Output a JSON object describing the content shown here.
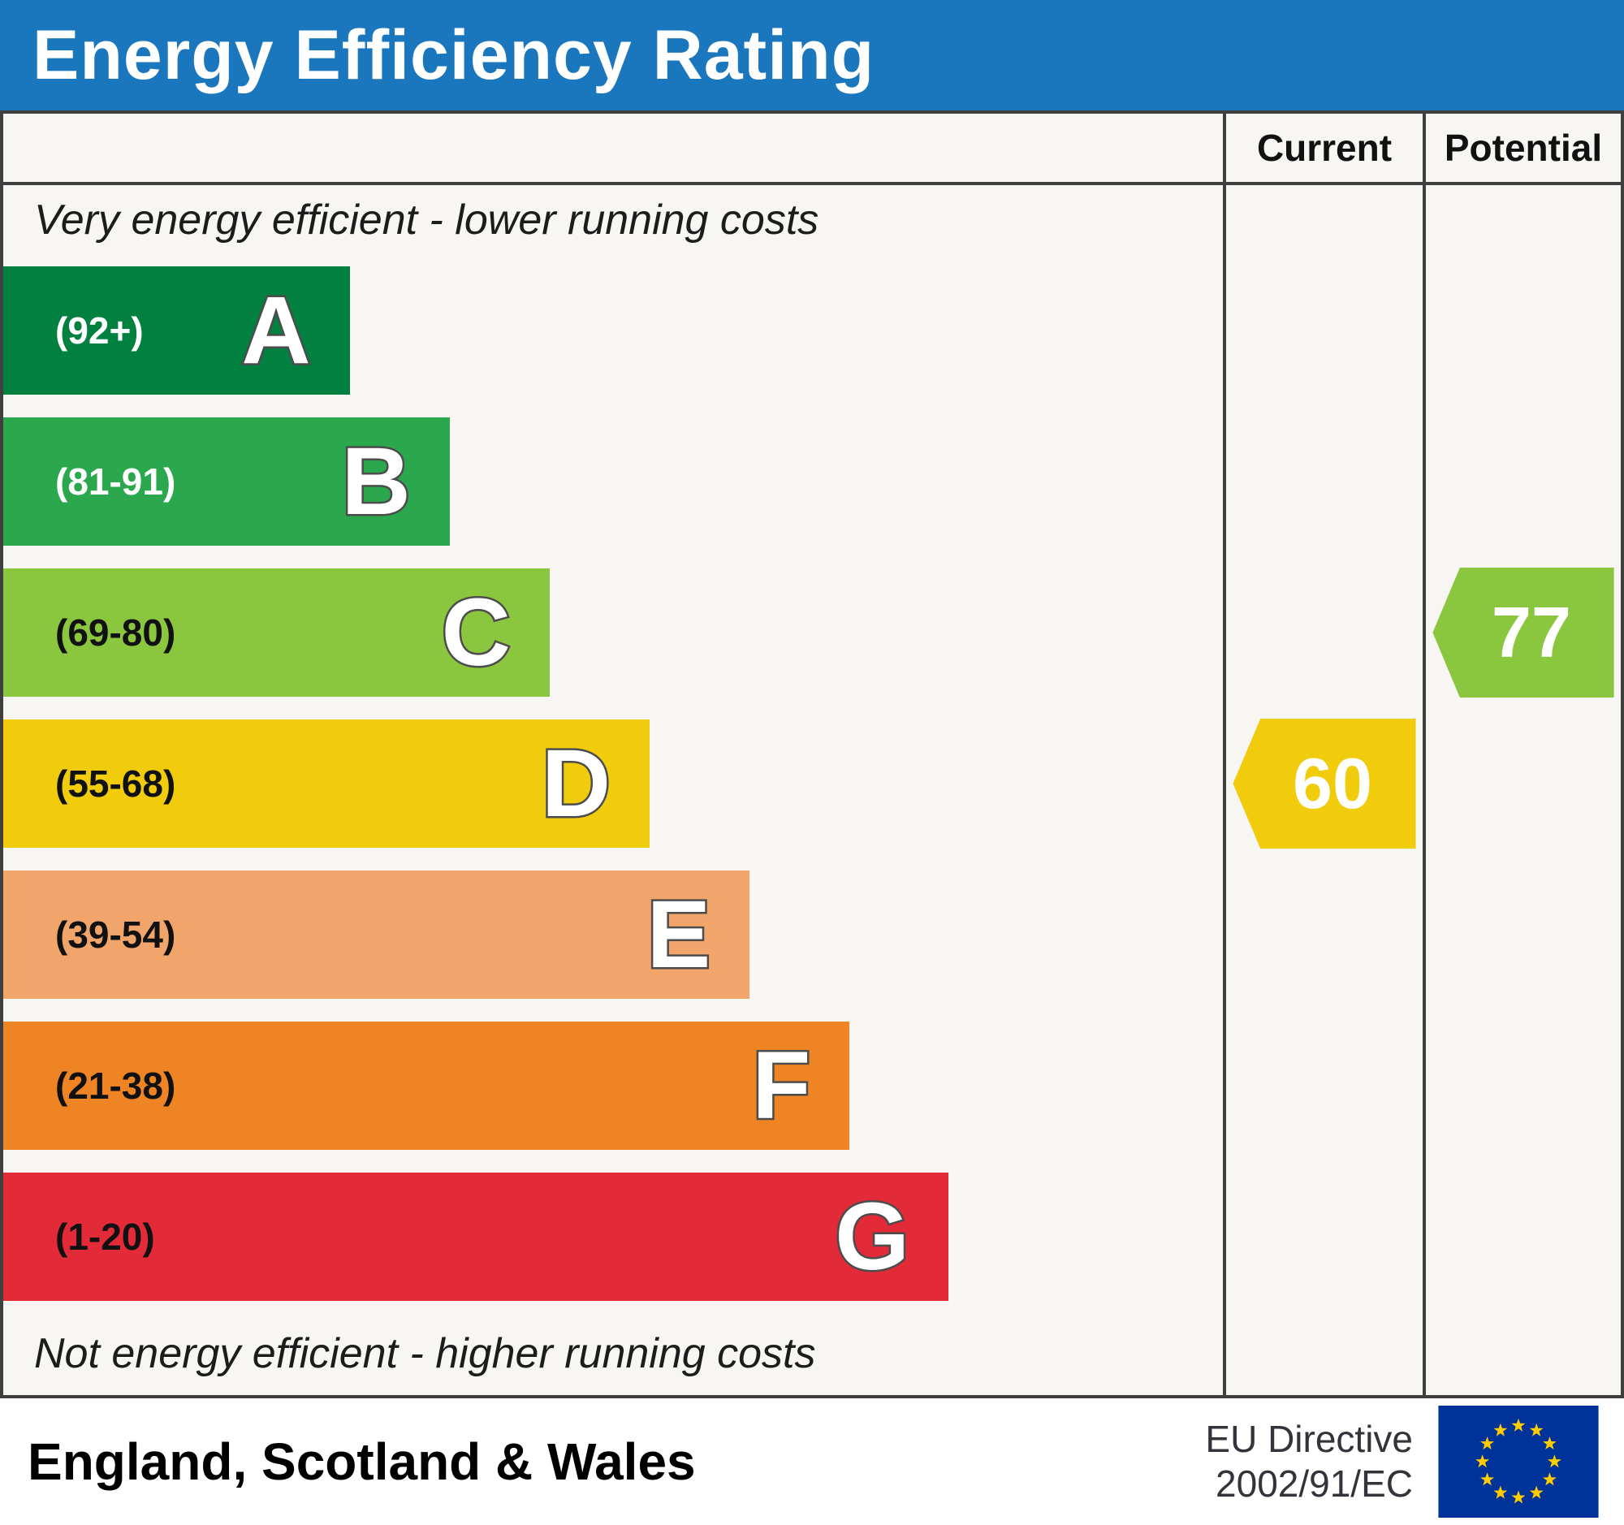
{
  "banner": {
    "title": "Energy Efficiency Rating",
    "bg": "#1a77bd"
  },
  "columns": {
    "current": "Current",
    "potential": "Potential"
  },
  "chart_data": {
    "type": "bar",
    "title": "Energy Efficiency Rating",
    "top_note": "Very energy efficient - lower running costs",
    "bottom_note": "Not energy efficient - higher running costs",
    "bands": [
      {
        "letter": "A",
        "range": "(92+)",
        "min": 92,
        "max": 100,
        "color": "#018040",
        "width_pct": 28.4,
        "range_color": "#ffffff"
      },
      {
        "letter": "B",
        "range": "(81-91)",
        "min": 81,
        "max": 91,
        "color": "#2ba84e",
        "width_pct": 36.6,
        "range_color": "#ffffff"
      },
      {
        "letter": "C",
        "range": "(69-80)",
        "min": 69,
        "max": 80,
        "color": "#8bc63f",
        "width_pct": 44.8,
        "range_color": "#111111"
      },
      {
        "letter": "D",
        "range": "(55-68)",
        "min": 55,
        "max": 68,
        "color": "#f1cc0c",
        "width_pct": 53.0,
        "range_color": "#111111"
      },
      {
        "letter": "E",
        "range": "(39-54)",
        "min": 39,
        "max": 54,
        "color": "#f2a56b",
        "width_pct": 61.2,
        "range_color": "#111111"
      },
      {
        "letter": "F",
        "range": "(21-38)",
        "min": 21,
        "max": 38,
        "color": "#ee8424",
        "width_pct": 69.4,
        "range_color": "#111111"
      },
      {
        "letter": "G",
        "range": "(1-20)",
        "min": 1,
        "max": 20,
        "color": "#e32a38",
        "width_pct": 77.5,
        "range_color": "#111111"
      }
    ],
    "current": {
      "value": 60,
      "color": "#f1cc0c"
    },
    "potential": {
      "value": 77,
      "color": "#8bc63f"
    }
  },
  "footer": {
    "region": "England, Scotland & Wales",
    "directive_line1": "EU Directive",
    "directive_line2": "2002/91/EC",
    "flag": {
      "bg": "#003399",
      "star_color": "#ffcc00"
    }
  }
}
